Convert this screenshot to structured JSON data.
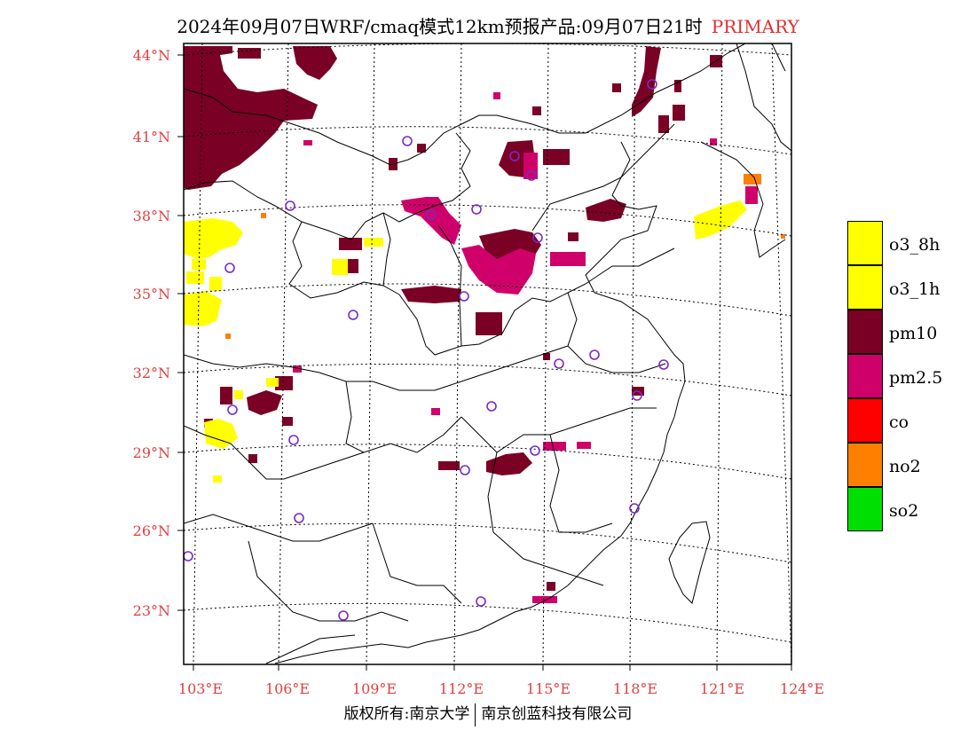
{
  "title": {
    "main": "2024年09月07日WRF/cmaq模式12km预报产品:09月07日21时",
    "tag": "PRIMARY"
  },
  "axes": {
    "lat_labels": [
      "44°N",
      "41°N",
      "38°N",
      "35°N",
      "32°N",
      "29°N",
      "26°N",
      "23°N"
    ],
    "lon_labels": [
      "103°E",
      "106°E",
      "109°E",
      "112°E",
      "115°E",
      "118°E",
      "121°E",
      "124°E"
    ]
  },
  "legend": [
    {
      "label": "o3_8h",
      "color": "#ffff00"
    },
    {
      "label": "o3_1h",
      "color": "#ffff00"
    },
    {
      "label": "pm10",
      "color": "#7a0025"
    },
    {
      "label": "pm2.5",
      "color": "#d0006a"
    },
    {
      "label": "co",
      "color": "#ff0000"
    },
    {
      "label": "no2",
      "color": "#ff7f00"
    },
    {
      "label": "so2",
      "color": "#00e000"
    }
  ],
  "colors": {
    "pm10": "#7a0025",
    "pm25": "#d0006a",
    "o3": "#ffff00",
    "no2": "#ff7f00",
    "station": "#7a28c8",
    "grid": "#000000",
    "axis_label": "#e04040"
  },
  "footer": {
    "left": "版权所有:南京大学",
    "right": "南京创蓝科技有限公司"
  }
}
